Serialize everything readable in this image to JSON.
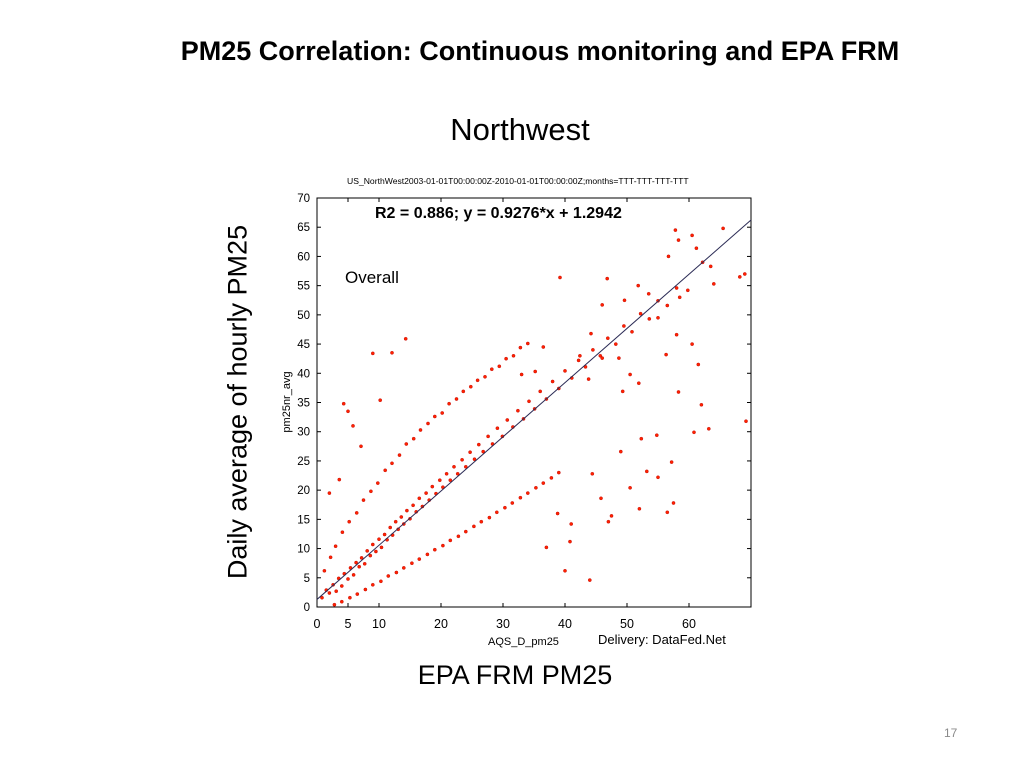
{
  "slide": {
    "title": "PM25  Correlation: Continuous monitoring and EPA FRM",
    "region": "Northwest",
    "y_axis_label": "Daily average of hourly PM25",
    "x_axis_label": "EPA FRM PM25",
    "page_number": "17"
  },
  "chart_data": {
    "type": "scatter",
    "subtitle": "US_NorthWest2003-01-01T00:00:00Z-2010-01-01T00:00:00Z;months=TTT-TTT-TTT-TTT",
    "regression_text": "R2 = 0.886; y = 0.9276*x + 1.2942",
    "annotation": "Overall",
    "xlabel": "AQS_D_pm25",
    "ylabel": "pm25nr_avg",
    "credit": "Delivery: DataFed.Net",
    "xlim": [
      0,
      70
    ],
    "ylim": [
      0,
      70
    ],
    "x_ticks": [
      0,
      5,
      10,
      20,
      30,
      40,
      50,
      60
    ],
    "y_ticks": [
      0,
      5,
      10,
      15,
      20,
      25,
      30,
      35,
      40,
      45,
      50,
      55,
      60,
      65,
      70
    ],
    "regression": {
      "slope": 0.9276,
      "intercept": 1.2942,
      "r2": 0.886
    },
    "marker_color": "#ff2200",
    "series": [
      {
        "points": [
          [
            0.8,
            1.6
          ],
          [
            1.5,
            2.9
          ],
          [
            2.0,
            2.4
          ],
          [
            2.6,
            3.8
          ],
          [
            3.1,
            2.7
          ],
          [
            3.5,
            4.9
          ],
          [
            4.0,
            3.6
          ],
          [
            4.4,
            5.7
          ],
          [
            5.0,
            4.8
          ],
          [
            5.4,
            6.7
          ],
          [
            5.9,
            5.5
          ],
          [
            6.3,
            7.6
          ],
          [
            6.8,
            6.9
          ],
          [
            7.2,
            8.4
          ],
          [
            7.7,
            7.4
          ],
          [
            8.1,
            9.6
          ],
          [
            8.6,
            8.8
          ],
          [
            9.0,
            10.7
          ],
          [
            9.5,
            9.5
          ],
          [
            10.0,
            11.6
          ],
          [
            10.4,
            10.2
          ],
          [
            10.9,
            12.4
          ],
          [
            11.3,
            11.5
          ],
          [
            11.8,
            13.6
          ],
          [
            12.2,
            12.3
          ],
          [
            12.7,
            14.6
          ],
          [
            13.1,
            13.3
          ],
          [
            13.6,
            15.4
          ],
          [
            14.0,
            14.2
          ],
          [
            14.5,
            16.5
          ],
          [
            15.0,
            15.1
          ],
          [
            15.5,
            17.4
          ],
          [
            16.0,
            16.3
          ],
          [
            16.5,
            18.6
          ],
          [
            17.0,
            17.2
          ],
          [
            17.6,
            19.5
          ],
          [
            18.1,
            18.3
          ],
          [
            18.6,
            20.6
          ],
          [
            19.2,
            19.4
          ],
          [
            19.8,
            21.7
          ],
          [
            20.3,
            20.5
          ],
          [
            20.9,
            22.8
          ],
          [
            21.5,
            21.7
          ],
          [
            22.1,
            24.0
          ],
          [
            22.7,
            22.8
          ],
          [
            23.4,
            25.2
          ],
          [
            24.0,
            24.0
          ],
          [
            24.7,
            26.5
          ],
          [
            25.4,
            25.3
          ],
          [
            26.1,
            27.8
          ],
          [
            26.8,
            26.6
          ],
          [
            27.6,
            29.2
          ],
          [
            28.3,
            27.9
          ],
          [
            29.1,
            30.6
          ],
          [
            29.9,
            29.2
          ],
          [
            30.7,
            32.0
          ],
          [
            31.6,
            30.8
          ],
          [
            32.4,
            33.6
          ],
          [
            33.3,
            32.2
          ],
          [
            34.2,
            35.2
          ],
          [
            35.1,
            33.9
          ],
          [
            36.0,
            36.9
          ],
          [
            37.0,
            35.6
          ],
          [
            38.0,
            38.6
          ],
          [
            39.0,
            37.4
          ],
          [
            40.0,
            40.4
          ],
          [
            41.1,
            39.2
          ],
          [
            42.2,
            42.2
          ],
          [
            43.3,
            41.1
          ],
          [
            44.5,
            44.0
          ],
          [
            45.7,
            43.0
          ],
          [
            46.9,
            46.0
          ],
          [
            48.2,
            45.0
          ],
          [
            49.5,
            48.1
          ],
          [
            50.8,
            47.1
          ],
          [
            52.2,
            50.2
          ],
          [
            53.6,
            49.3
          ],
          [
            55.0,
            52.4
          ],
          [
            56.5,
            51.6
          ],
          [
            58.0,
            54.6
          ],
          [
            1.2,
            6.2
          ],
          [
            2.2,
            8.5
          ],
          [
            3.0,
            10.4
          ],
          [
            4.1,
            12.8
          ],
          [
            5.2,
            14.6
          ],
          [
            6.4,
            16.1
          ],
          [
            7.5,
            18.3
          ],
          [
            8.7,
            19.8
          ],
          [
            9.8,
            21.2
          ],
          [
            11.0,
            23.4
          ],
          [
            12.1,
            24.6
          ],
          [
            13.3,
            26.0
          ],
          [
            14.4,
            27.9
          ],
          [
            15.6,
            28.8
          ],
          [
            16.7,
            30.3
          ],
          [
            17.9,
            31.4
          ],
          [
            19.0,
            32.6
          ],
          [
            20.2,
            33.2
          ],
          [
            21.3,
            34.8
          ],
          [
            22.5,
            35.6
          ],
          [
            23.6,
            36.9
          ],
          [
            24.8,
            37.7
          ],
          [
            25.9,
            38.8
          ],
          [
            27.1,
            39.4
          ],
          [
            28.2,
            40.7
          ],
          [
            29.4,
            41.2
          ],
          [
            30.5,
            42.5
          ],
          [
            31.7,
            43.0
          ],
          [
            32.8,
            44.4
          ],
          [
            34.0,
            45.1
          ],
          [
            2.8,
            0.4
          ],
          [
            4.0,
            0.9
          ],
          [
            5.3,
            1.6
          ],
          [
            6.5,
            2.2
          ],
          [
            7.8,
            3.0
          ],
          [
            9.0,
            3.8
          ],
          [
            10.3,
            4.4
          ],
          [
            11.5,
            5.3
          ],
          [
            12.8,
            5.9
          ],
          [
            14.0,
            6.7
          ],
          [
            15.3,
            7.5
          ],
          [
            16.5,
            8.2
          ],
          [
            17.8,
            9.0
          ],
          [
            19.0,
            9.8
          ],
          [
            20.3,
            10.5
          ],
          [
            21.5,
            11.4
          ],
          [
            22.8,
            12.1
          ],
          [
            24.0,
            12.9
          ],
          [
            25.3,
            13.8
          ],
          [
            26.5,
            14.6
          ],
          [
            27.8,
            15.3
          ],
          [
            29.0,
            16.2
          ],
          [
            30.3,
            17.0
          ],
          [
            31.5,
            17.8
          ],
          [
            32.8,
            18.7
          ],
          [
            34.0,
            19.5
          ],
          [
            35.3,
            20.4
          ],
          [
            36.5,
            21.2
          ],
          [
            37.8,
            22.1
          ],
          [
            39.0,
            23.0
          ],
          [
            5.0,
            33.5
          ],
          [
            4.3,
            34.8
          ],
          [
            9.0,
            43.4
          ],
          [
            12.1,
            43.5
          ],
          [
            14.3,
            45.9
          ],
          [
            10.2,
            35.4
          ],
          [
            5.8,
            31.0
          ],
          [
            7.1,
            27.5
          ],
          [
            2.0,
            19.5
          ],
          [
            3.6,
            21.8
          ],
          [
            44.0,
            4.6
          ],
          [
            40.0,
            6.2
          ],
          [
            37.0,
            10.2
          ],
          [
            40.8,
            11.2
          ],
          [
            47.0,
            14.6
          ],
          [
            47.5,
            15.6
          ],
          [
            45.8,
            18.6
          ],
          [
            50.5,
            20.4
          ],
          [
            52.0,
            16.8
          ],
          [
            56.5,
            16.2
          ],
          [
            57.5,
            17.8
          ],
          [
            55.0,
            22.2
          ],
          [
            53.2,
            23.2
          ],
          [
            41.0,
            14.2
          ],
          [
            38.8,
            16.0
          ],
          [
            44.4,
            22.8
          ],
          [
            49.0,
            26.6
          ],
          [
            52.3,
            28.8
          ],
          [
            54.8,
            29.4
          ],
          [
            57.2,
            24.8
          ],
          [
            60.8,
            29.9
          ],
          [
            63.2,
            30.5
          ],
          [
            69.2,
            31.8
          ],
          [
            58.3,
            36.8
          ],
          [
            62.0,
            34.6
          ],
          [
            61.5,
            41.5
          ],
          [
            58.0,
            46.6
          ],
          [
            56.3,
            43.2
          ],
          [
            55.0,
            49.5
          ],
          [
            60.5,
            45.0
          ],
          [
            58.5,
            53.0
          ],
          [
            62.2,
            59.0
          ],
          [
            63.5,
            58.3
          ],
          [
            56.7,
            60.0
          ],
          [
            57.8,
            64.5
          ],
          [
            58.3,
            62.8
          ],
          [
            60.5,
            63.6
          ],
          [
            61.2,
            61.4
          ],
          [
            65.5,
            64.8
          ],
          [
            68.2,
            56.5
          ],
          [
            69.0,
            57.0
          ],
          [
            59.8,
            54.2
          ],
          [
            64.0,
            55.3
          ],
          [
            51.8,
            55.0
          ],
          [
            53.5,
            53.6
          ],
          [
            49.6,
            52.5
          ],
          [
            46.0,
            51.7
          ],
          [
            46.8,
            56.2
          ],
          [
            39.2,
            56.4
          ],
          [
            42.4,
            43.0
          ],
          [
            44.2,
            46.8
          ],
          [
            46.0,
            42.6
          ],
          [
            43.8,
            39.0
          ],
          [
            49.3,
            36.9
          ],
          [
            50.5,
            39.8
          ],
          [
            51.9,
            38.3
          ],
          [
            48.7,
            42.6
          ],
          [
            35.2,
            40.3
          ],
          [
            36.5,
            44.5
          ],
          [
            33.0,
            39.8
          ]
        ]
      }
    ]
  }
}
